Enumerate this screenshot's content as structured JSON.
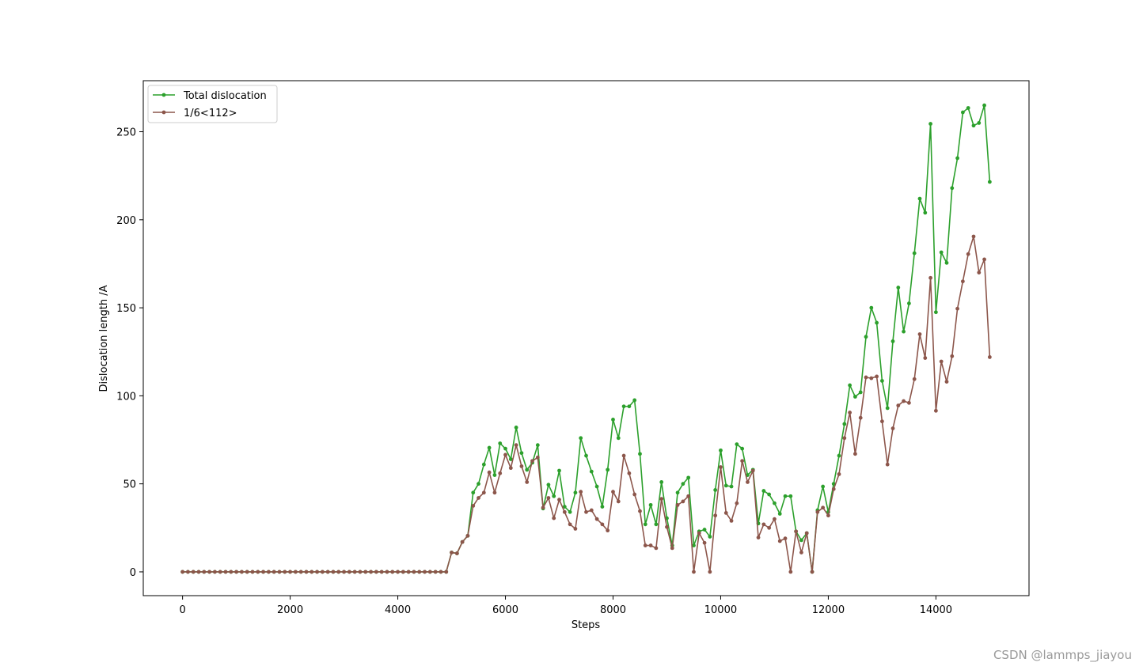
{
  "chart_data": {
    "type": "line",
    "xlabel": "Steps",
    "ylabel": "Dislocation length /A",
    "xlim": [
      -730,
      15730
    ],
    "ylim": [
      -13.5,
      279
    ],
    "xticks": [
      0,
      2000,
      4000,
      6000,
      8000,
      10000,
      12000,
      14000
    ],
    "yticks": [
      0,
      50,
      100,
      150,
      200,
      250
    ],
    "legend_position": "top-left",
    "grid": false,
    "markers": "circle",
    "x_start": 0,
    "x_step": 100,
    "series": [
      {
        "name": "Total dislocation",
        "color": "#2ca02c",
        "values": [
          0,
          0,
          0,
          0,
          0,
          0,
          0,
          0,
          0,
          0,
          0,
          0,
          0,
          0,
          0,
          0,
          0,
          0,
          0,
          0,
          0,
          0,
          0,
          0,
          0,
          0,
          0,
          0,
          0,
          0,
          0,
          0,
          0,
          0,
          0,
          0,
          0,
          0,
          0,
          0,
          0,
          0,
          0,
          0,
          0,
          0,
          0,
          0,
          0,
          0,
          11,
          10.5,
          17,
          20.5,
          45,
          50,
          61,
          70.5,
          55,
          73,
          70,
          64,
          82,
          67.5,
          58,
          62,
          72,
          36,
          49.5,
          43,
          57.5,
          37,
          34,
          45,
          76,
          66,
          57,
          48.5,
          37,
          58,
          86.5,
          76,
          94,
          94,
          97.5,
          67,
          27,
          38,
          27,
          51,
          30.5,
          15,
          45,
          50,
          53.5,
          15,
          23,
          24,
          20,
          46.5,
          69,
          49,
          48.5,
          72.5,
          70,
          55,
          58,
          27.5,
          46,
          44,
          39,
          33,
          43,
          43,
          23,
          18,
          22,
          0,
          35,
          48.5,
          34,
          50,
          66,
          84,
          106,
          99.5,
          102,
          133.5,
          150,
          141.5,
          108.5,
          93,
          131,
          161.5,
          136.5,
          152.5,
          181,
          212,
          204,
          254.5,
          147.5,
          181.5,
          175.5,
          218,
          235,
          261,
          263.5,
          253.5,
          255,
          265,
          221.5
        ]
      },
      {
        "name": "1/6<112>",
        "color": "#8c564b",
        "values": [
          0,
          0,
          0,
          0,
          0,
          0,
          0,
          0,
          0,
          0,
          0,
          0,
          0,
          0,
          0,
          0,
          0,
          0,
          0,
          0,
          0,
          0,
          0,
          0,
          0,
          0,
          0,
          0,
          0,
          0,
          0,
          0,
          0,
          0,
          0,
          0,
          0,
          0,
          0,
          0,
          0,
          0,
          0,
          0,
          0,
          0,
          0,
          0,
          0,
          0,
          11,
          10.5,
          17,
          20.5,
          37.5,
          42,
          45,
          56.5,
          45,
          56,
          66.5,
          59,
          72,
          60,
          51,
          63,
          65,
          36.5,
          42,
          30.5,
          41,
          34,
          27,
          24.5,
          45.5,
          34,
          35,
          30,
          27,
          23.5,
          45.5,
          40,
          66,
          56,
          44,
          34.5,
          15,
          15,
          13.5,
          41.5,
          25.5,
          13.5,
          38,
          40,
          43,
          0,
          22,
          16.5,
          0,
          32,
          59.5,
          33.5,
          29,
          39,
          63,
          51,
          57.5,
          19.5,
          27,
          25,
          30,
          17.5,
          19,
          0,
          23,
          11,
          22,
          0,
          34,
          36.5,
          32,
          47,
          55.5,
          76,
          90.5,
          67,
          87.5,
          110.5,
          110,
          111,
          85.5,
          61,
          81.5,
          94.5,
          97,
          96,
          109.5,
          135,
          121.5,
          167,
          91.5,
          119.5,
          108,
          122.5,
          149.5,
          165,
          180.5,
          190.5,
          170,
          177.5,
          122
        ]
      }
    ]
  },
  "watermark": "CSDN @lammps_jiayou"
}
